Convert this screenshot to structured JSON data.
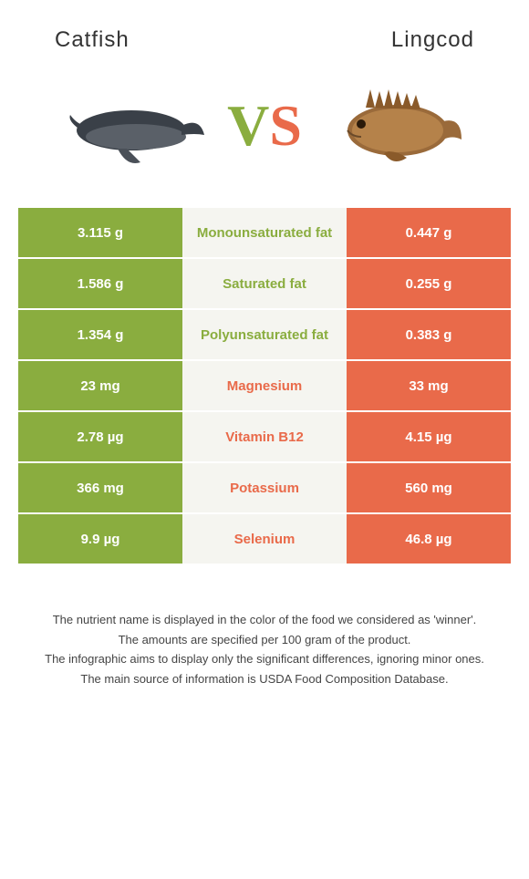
{
  "header": {
    "left_title": "Catfish",
    "right_title": "Lingcod"
  },
  "vs": {
    "v": "V",
    "s": "S"
  },
  "colors": {
    "left": "#8aad3f",
    "right": "#e96a4a",
    "mid_bg": "#f5f5f0"
  },
  "rows": [
    {
      "left": "3.115 g",
      "label": "Monounsaturated fat",
      "right": "0.447 g",
      "winner": "left"
    },
    {
      "left": "1.586 g",
      "label": "Saturated fat",
      "right": "0.255 g",
      "winner": "left"
    },
    {
      "left": "1.354 g",
      "label": "Polyunsaturated fat",
      "right": "0.383 g",
      "winner": "left"
    },
    {
      "left": "23 mg",
      "label": "Magnesium",
      "right": "33 mg",
      "winner": "right"
    },
    {
      "left": "2.78 µg",
      "label": "Vitamin B12",
      "right": "4.15 µg",
      "winner": "right"
    },
    {
      "left": "366 mg",
      "label": "Potassium",
      "right": "560 mg",
      "winner": "right"
    },
    {
      "left": "9.9 µg",
      "label": "Selenium",
      "right": "46.8 µg",
      "winner": "right"
    }
  ],
  "footer": {
    "l1": "The nutrient name is displayed in the color of the food we considered as 'winner'.",
    "l2": "The amounts are specified per 100 gram of the product.",
    "l3": "The infographic aims to display only the significant differences, ignoring minor ones.",
    "l4": "The main source of information is USDA Food Composition Database."
  }
}
